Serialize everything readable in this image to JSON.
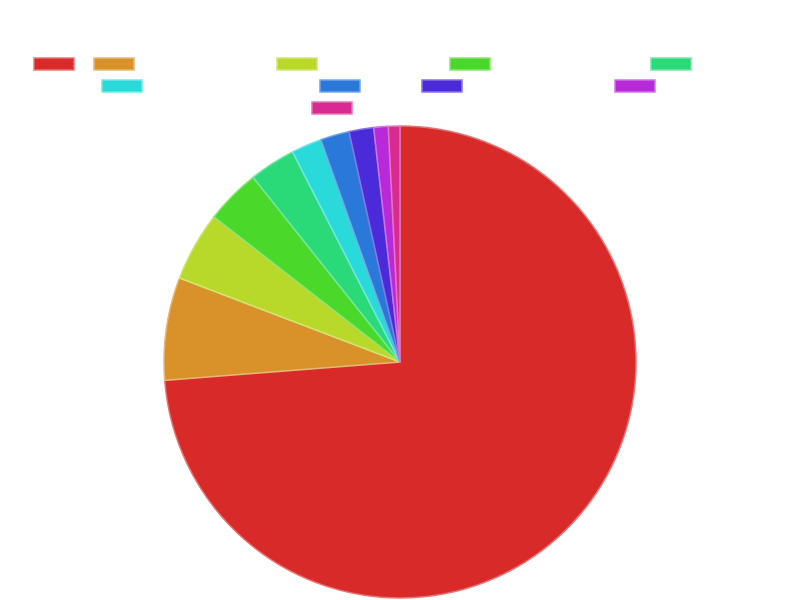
{
  "chart_data": {
    "type": "pie",
    "start_angle_deg": 90,
    "direction": "clockwise",
    "legend": {
      "placement": "top",
      "rows": 3,
      "labels_shown": false
    },
    "slices": [
      {
        "value": 74.5,
        "color": "#d92a2a"
      },
      {
        "value": 7.1,
        "color": "#d9922a"
      },
      {
        "value": 4.8,
        "color": "#b8d92a"
      },
      {
        "value": 3.8,
        "color": "#4ad92a"
      },
      {
        "value": 3.2,
        "color": "#2ad978"
      },
      {
        "value": 2.1,
        "color": "#2ad9d9"
      },
      {
        "value": 2.0,
        "color": "#2a78d9"
      },
      {
        "value": 1.7,
        "color": "#4a2ad9"
      },
      {
        "value": 1.0,
        "color": "#b82ad9"
      },
      {
        "value": 0.8,
        "color": "#d92a92"
      }
    ]
  }
}
